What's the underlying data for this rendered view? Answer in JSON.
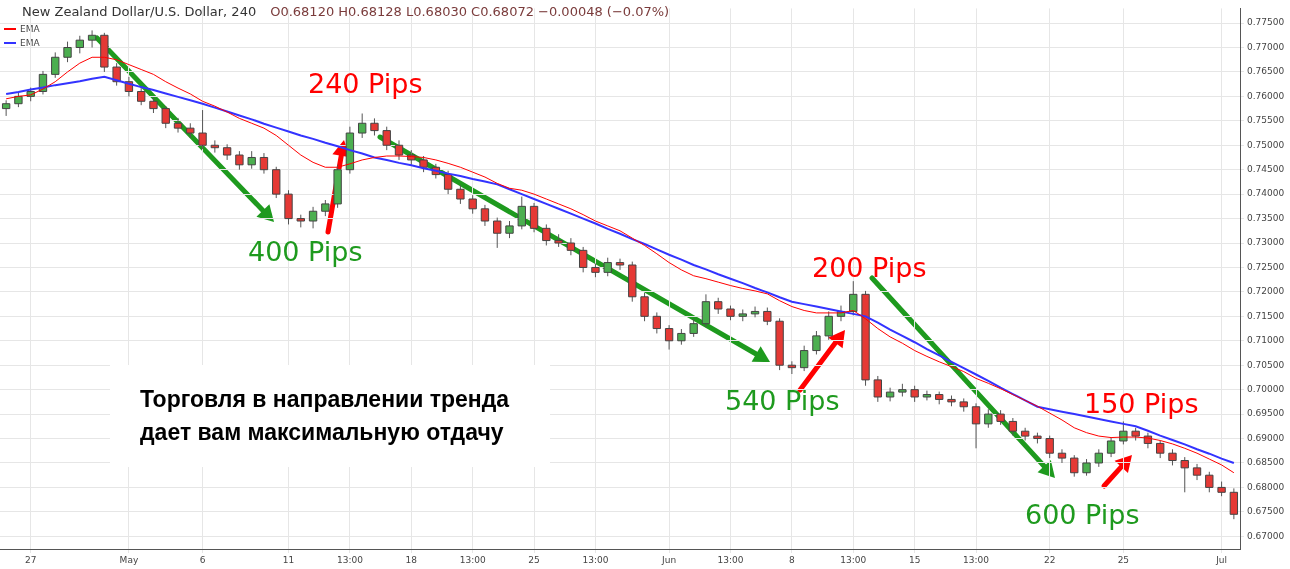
{
  "chart_data": {
    "type": "candlestick",
    "title": "New Zealand Dollar/U.S. Dollar, 240",
    "categories": [
      null,
      null,
      "27",
      null,
      null,
      null,
      null,
      null,
      null,
      null,
      "May",
      null,
      null,
      null,
      null,
      null,
      "6",
      null,
      null,
      null,
      null,
      null,
      null,
      "11",
      null,
      null,
      null,
      null,
      "13:00",
      null,
      null,
      null,
      null,
      "18",
      null,
      null,
      null,
      null,
      "13:00",
      null,
      null,
      null,
      null,
      "25",
      null,
      null,
      null,
      null,
      "13:00",
      null,
      null,
      null,
      null,
      null,
      "Jun",
      null,
      null,
      null,
      null,
      "13:00",
      null,
      null,
      null,
      null,
      "8",
      null,
      null,
      null,
      null,
      "13:00",
      null,
      null,
      null,
      null,
      "15",
      null,
      null,
      null,
      null,
      "13:00",
      null,
      null,
      null,
      null,
      null,
      "22",
      null,
      null,
      null,
      null,
      null,
      "25",
      null,
      null,
      null,
      null,
      null,
      null,
      null,
      "Jul",
      null
    ],
    "ohlc": [
      [
        0.7575,
        0.7592,
        0.756,
        0.7585
      ],
      [
        0.7585,
        0.7608,
        0.7578,
        0.76
      ],
      [
        0.76,
        0.7618,
        0.759,
        0.761
      ],
      [
        0.761,
        0.7652,
        0.7604,
        0.7645
      ],
      [
        0.7645,
        0.769,
        0.7638,
        0.768
      ],
      [
        0.768,
        0.7712,
        0.767,
        0.77
      ],
      [
        0.77,
        0.7724,
        0.7688,
        0.7715
      ],
      [
        0.7715,
        0.7735,
        0.77,
        0.7725
      ],
      [
        0.7725,
        0.773,
        0.765,
        0.766
      ],
      [
        0.766,
        0.7668,
        0.7622,
        0.763
      ],
      [
        0.763,
        0.764,
        0.76,
        0.761
      ],
      [
        0.761,
        0.7618,
        0.7582,
        0.759
      ],
      [
        0.759,
        0.7598,
        0.7566,
        0.7575
      ],
      [
        0.7575,
        0.758,
        0.7535,
        0.7545
      ],
      [
        0.7545,
        0.7556,
        0.7526,
        0.7535
      ],
      [
        0.7535,
        0.7545,
        0.7515,
        0.7525
      ],
      [
        0.7525,
        0.7572,
        0.7492,
        0.75
      ],
      [
        0.75,
        0.751,
        0.7485,
        0.7495
      ],
      [
        0.7495,
        0.7502,
        0.747,
        0.748
      ],
      [
        0.748,
        0.7488,
        0.745,
        0.746
      ],
      [
        0.746,
        0.7488,
        0.7452,
        0.7475
      ],
      [
        0.7475,
        0.7484,
        0.7442,
        0.745
      ],
      [
        0.745,
        0.7456,
        0.7392,
        0.74
      ],
      [
        0.74,
        0.7408,
        0.7338,
        0.735
      ],
      [
        0.735,
        0.7358,
        0.7332,
        0.7345
      ],
      [
        0.7345,
        0.7374,
        0.733,
        0.7365
      ],
      [
        0.7365,
        0.7388,
        0.7355,
        0.738
      ],
      [
        0.738,
        0.746,
        0.7372,
        0.745
      ],
      [
        0.745,
        0.7538,
        0.7442,
        0.7525
      ],
      [
        0.7525,
        0.7565,
        0.7515,
        0.7545
      ],
      [
        0.7545,
        0.7555,
        0.752,
        0.753
      ],
      [
        0.753,
        0.7538,
        0.749,
        0.75
      ],
      [
        0.75,
        0.751,
        0.747,
        0.748
      ],
      [
        0.748,
        0.749,
        0.746,
        0.747
      ],
      [
        0.747,
        0.7478,
        0.7445,
        0.7455
      ],
      [
        0.7455,
        0.7462,
        0.7432,
        0.744
      ],
      [
        0.744,
        0.7448,
        0.74,
        0.741
      ],
      [
        0.741,
        0.7418,
        0.738,
        0.739
      ],
      [
        0.739,
        0.7398,
        0.736,
        0.737
      ],
      [
        0.737,
        0.7378,
        0.7335,
        0.7345
      ],
      [
        0.7345,
        0.7352,
        0.729,
        0.732
      ],
      [
        0.732,
        0.7345,
        0.731,
        0.7335
      ],
      [
        0.7335,
        0.7395,
        0.7328,
        0.7375
      ],
      [
        0.7375,
        0.7382,
        0.7322,
        0.733
      ],
      [
        0.733,
        0.7338,
        0.7295,
        0.7305
      ],
      [
        0.7305,
        0.7318,
        0.7292,
        0.73
      ],
      [
        0.73,
        0.731,
        0.7275,
        0.7285
      ],
      [
        0.7285,
        0.7292,
        0.724,
        0.725
      ],
      [
        0.725,
        0.7258,
        0.723,
        0.724
      ],
      [
        0.724,
        0.727,
        0.7232,
        0.726
      ],
      [
        0.726,
        0.7268,
        0.7245,
        0.7255
      ],
      [
        0.7255,
        0.7262,
        0.718,
        0.719
      ],
      [
        0.719,
        0.7198,
        0.714,
        0.715
      ],
      [
        0.715,
        0.7158,
        0.7115,
        0.7125
      ],
      [
        0.7125,
        0.7132,
        0.7082,
        0.71
      ],
      [
        0.71,
        0.7124,
        0.7092,
        0.7115
      ],
      [
        0.7115,
        0.7145,
        0.7108,
        0.7135
      ],
      [
        0.7135,
        0.7195,
        0.7128,
        0.718
      ],
      [
        0.718,
        0.7188,
        0.7155,
        0.7165
      ],
      [
        0.7165,
        0.7172,
        0.7142,
        0.715
      ],
      [
        0.715,
        0.7164,
        0.714,
        0.7155
      ],
      [
        0.7155,
        0.717,
        0.7148,
        0.716
      ],
      [
        0.716,
        0.7168,
        0.7132,
        0.714
      ],
      [
        0.714,
        0.7146,
        0.704,
        0.705
      ],
      [
        0.705,
        0.7058,
        0.7032,
        0.7045
      ],
      [
        0.7045,
        0.709,
        0.7038,
        0.708
      ],
      [
        0.708,
        0.712,
        0.7072,
        0.711
      ],
      [
        0.711,
        0.716,
        0.7102,
        0.715
      ],
      [
        0.715,
        0.7172,
        0.714,
        0.716
      ],
      [
        0.716,
        0.7222,
        0.7152,
        0.7195
      ],
      [
        0.7195,
        0.7202,
        0.7008,
        0.702
      ],
      [
        0.702,
        0.7028,
        0.6975,
        0.6985
      ],
      [
        0.6985,
        0.7004,
        0.6976,
        0.6995
      ],
      [
        0.6995,
        0.7012,
        0.6986,
        0.7
      ],
      [
        0.7,
        0.7008,
        0.6975,
        0.6985
      ],
      [
        0.6985,
        0.6998,
        0.6978,
        0.699
      ],
      [
        0.699,
        0.6996,
        0.697,
        0.698
      ],
      [
        0.698,
        0.6988,
        0.6966,
        0.6975
      ],
      [
        0.6975,
        0.6982,
        0.6955,
        0.6965
      ],
      [
        0.6965,
        0.6972,
        0.688,
        0.693
      ],
      [
        0.693,
        0.696,
        0.6922,
        0.695
      ],
      [
        0.695,
        0.6958,
        0.6928,
        0.6935
      ],
      [
        0.6935,
        0.6942,
        0.6906,
        0.6915
      ],
      [
        0.6915,
        0.6922,
        0.6896,
        0.6905
      ],
      [
        0.6905,
        0.6912,
        0.689,
        0.69
      ],
      [
        0.69,
        0.6906,
        0.686,
        0.687
      ],
      [
        0.687,
        0.6878,
        0.685,
        0.686
      ],
      [
        0.686,
        0.6866,
        0.6822,
        0.683
      ],
      [
        0.683,
        0.6858,
        0.6824,
        0.685
      ],
      [
        0.685,
        0.6878,
        0.6842,
        0.687
      ],
      [
        0.687,
        0.6902,
        0.6862,
        0.6895
      ],
      [
        0.6895,
        0.6935,
        0.6888,
        0.6915
      ],
      [
        0.6915,
        0.6922,
        0.6896,
        0.6905
      ],
      [
        0.6905,
        0.6912,
        0.688,
        0.689
      ],
      [
        0.689,
        0.6896,
        0.686,
        0.687
      ],
      [
        0.687,
        0.6878,
        0.6845,
        0.6855
      ],
      [
        0.6855,
        0.6862,
        0.679,
        0.684
      ],
      [
        0.684,
        0.6848,
        0.6815,
        0.6825
      ],
      [
        0.6825,
        0.6832,
        0.679,
        0.68
      ],
      [
        0.68,
        0.6812,
        0.6782,
        0.679
      ],
      [
        0.679,
        0.6798,
        0.6735,
        0.6745
      ]
    ],
    "series": [
      {
        "name": "EMA",
        "type": "line",
        "color": "#ff0000",
        "values": [
          0.7595,
          0.76,
          0.7603,
          0.7615,
          0.763,
          0.765,
          0.7668,
          0.768,
          0.768,
          0.7675,
          0.7665,
          0.7655,
          0.7645,
          0.763,
          0.7617,
          0.7605,
          0.759,
          0.758,
          0.7568,
          0.7555,
          0.7545,
          0.7535,
          0.752,
          0.75,
          0.748,
          0.7465,
          0.7455,
          0.7455,
          0.7462,
          0.747,
          0.7475,
          0.7478,
          0.7478,
          0.7477,
          0.7475,
          0.747,
          0.7463,
          0.7455,
          0.7445,
          0.7435,
          0.7422,
          0.7412,
          0.7408,
          0.74,
          0.739,
          0.738,
          0.737,
          0.7358,
          0.7345,
          0.7335,
          0.7325,
          0.731,
          0.7295,
          0.7278,
          0.726,
          0.7245,
          0.7233,
          0.7227,
          0.722,
          0.7213,
          0.7207,
          0.7202,
          0.7196,
          0.7182,
          0.717,
          0.7162,
          0.7157,
          0.7157,
          0.7157,
          0.7162,
          0.7145,
          0.7125,
          0.7108,
          0.7095,
          0.708,
          0.7068,
          0.7057,
          0.7047,
          0.7037,
          0.7023,
          0.7013,
          0.7002,
          0.699,
          0.6978,
          0.6966,
          0.6952,
          0.6938,
          0.6922,
          0.6912,
          0.6905,
          0.6902,
          0.6903,
          0.6903,
          0.6901,
          0.6896,
          0.6889,
          0.688,
          0.687,
          0.6858,
          0.6846,
          0.683
        ]
      },
      {
        "name": "EMA",
        "type": "line",
        "color": "#3333ff",
        "values": [
          0.7605,
          0.7609,
          0.7614,
          0.7618,
          0.7623,
          0.7627,
          0.7631,
          0.7636,
          0.764,
          0.7633,
          0.7626,
          0.7619,
          0.7613,
          0.7606,
          0.7599,
          0.7592,
          0.7585,
          0.7577,
          0.7569,
          0.7561,
          0.7553,
          0.7544,
          0.7536,
          0.7528,
          0.752,
          0.7513,
          0.7505,
          0.7498,
          0.749,
          0.7483,
          0.7475,
          0.747,
          0.7464,
          0.7459,
          0.7453,
          0.7448,
          0.7442,
          0.7437,
          0.7431,
          0.7426,
          0.742,
          0.741,
          0.74,
          0.739,
          0.738,
          0.737,
          0.736,
          0.735,
          0.734,
          0.7329,
          0.7319,
          0.7308,
          0.7298,
          0.7287,
          0.7276,
          0.7266,
          0.7255,
          0.7246,
          0.7236,
          0.7227,
          0.7218,
          0.7208,
          0.7199,
          0.7189,
          0.718,
          0.7175,
          0.717,
          0.7165,
          0.716,
          0.7155,
          0.715,
          0.7137,
          0.7123,
          0.711,
          0.7097,
          0.7083,
          0.707,
          0.7057,
          0.7044,
          0.7031,
          0.7018,
          0.7004,
          0.6991,
          0.6978,
          0.6965,
          0.696,
          0.6955,
          0.695,
          0.6945,
          0.694,
          0.6935,
          0.693,
          0.6925,
          0.6916,
          0.6906,
          0.6897,
          0.6888,
          0.6878,
          0.6869,
          0.6859,
          0.685
        ]
      }
    ],
    "ylim": [
      0.6674,
      0.778
    ],
    "yticks": [
      {
        "value": 0.67,
        "label": "0.67000"
      },
      {
        "value": 0.675,
        "label": "0.67500"
      },
      {
        "value": 0.68,
        "label": "0.68000"
      },
      {
        "value": 0.685,
        "label": "0.68500"
      },
      {
        "value": 0.69,
        "label": "0.69000"
      },
      {
        "value": 0.695,
        "label": "0.69500"
      },
      {
        "value": 0.7,
        "label": "0.70000"
      },
      {
        "value": 0.705,
        "label": "0.70500"
      },
      {
        "value": 0.71,
        "label": "0.71000"
      },
      {
        "value": 0.715,
        "label": "0.71500"
      },
      {
        "value": 0.72,
        "label": "0.72000"
      },
      {
        "value": 0.725,
        "label": "0.72500"
      },
      {
        "value": 0.73,
        "label": "0.73000"
      },
      {
        "value": 0.735,
        "label": "0.73500"
      },
      {
        "value": 0.74,
        "label": "0.74000"
      },
      {
        "value": 0.745,
        "label": "0.74500"
      },
      {
        "value": 0.75,
        "label": "0.75000"
      },
      {
        "value": 0.755,
        "label": "0.75500"
      },
      {
        "value": 0.76,
        "label": "0.76000"
      },
      {
        "value": 0.765,
        "label": "0.76500"
      },
      {
        "value": 0.77,
        "label": "0.77000"
      },
      {
        "value": 0.775,
        "label": "0.77500"
      }
    ],
    "grid": true,
    "legend": "top left",
    "annotations": [
      "O0.68120 H0.68128 L0.68030 C0.68072 −0.00048 (−0.07%)",
      {
        "text": "400 Pips",
        "y": 0.7345
      },
      {
        "text": "240 Pips",
        "y": 0.756
      },
      {
        "text": "540 Pips",
        "y": 0.7045
      },
      {
        "text": "200 Pips",
        "y": 0.72
      },
      {
        "text": "600 Pips",
        "y": 0.6825
      },
      {
        "text": "150 Pips",
        "y": 0.6915
      },
      "Торговля в направлении тренда дает вам максимальную отдачу"
    ]
  }
}
